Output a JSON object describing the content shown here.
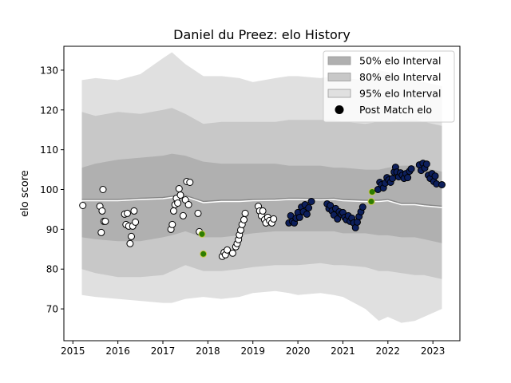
{
  "chart_data": {
    "type": "scatter",
    "title": "Daniel du Preez: elo History",
    "xlabel": "",
    "ylabel": "elo score",
    "xlim": [
      2014.8,
      2023.6
    ],
    "ylim": [
      62,
      136
    ],
    "x_ticks": [
      2015,
      2016,
      2017,
      2018,
      2019,
      2020,
      2021,
      2022,
      2023
    ],
    "x_tick_labels": [
      "2015",
      "2016",
      "2017",
      "2018",
      "2019",
      "2020",
      "2021",
      "2022",
      "2023"
    ],
    "y_ticks": [
      70,
      80,
      90,
      100,
      110,
      120,
      130
    ],
    "y_tick_labels": [
      "70",
      "80",
      "90",
      "100",
      "110",
      "120",
      "130"
    ],
    "grid": false,
    "legend": {
      "placement": "top-right",
      "entries": [
        {
          "label": "50% elo Interval",
          "color": "#b0b0b0",
          "kind": "patch"
        },
        {
          "label": "80% elo Interval",
          "color": "#c8c8c8",
          "kind": "patch"
        },
        {
          "label": "95% elo Interval",
          "color": "#e0e0e0",
          "kind": "patch"
        },
        {
          "label": "Post Match elo",
          "color": "#000000",
          "kind": "marker"
        }
      ]
    },
    "bands": {
      "x": [
        2015.2,
        2015.5,
        2016.0,
        2016.5,
        2017.0,
        2017.2,
        2017.5,
        2017.9,
        2018.3,
        2018.7,
        2019.0,
        2019.5,
        2019.8,
        2020.0,
        2020.5,
        2020.8,
        2021.0,
        2021.5,
        2021.8,
        2022.0,
        2022.3,
        2022.6,
        2022.8,
        2023.0,
        2023.2
      ],
      "median": [
        97.5,
        97.5,
        97.5,
        97.8,
        98.0,
        98.3,
        98.5,
        97.0,
        97.3,
        97.3,
        97.5,
        97.6,
        97.8,
        97.8,
        97.7,
        97.8,
        97.5,
        97.3,
        97.3,
        97.5,
        96.5,
        96.5,
        96.2,
        96.0,
        95.8
      ],
      "p50": [
        [
          88,
          105.5
        ],
        [
          87.5,
          106.5
        ],
        [
          87,
          107.5
        ],
        [
          87,
          108
        ],
        [
          88,
          108.5
        ],
        [
          88.5,
          109
        ],
        [
          89.5,
          108.5
        ],
        [
          88,
          107
        ],
        [
          88,
          106.5
        ],
        [
          88.5,
          106.5
        ],
        [
          89,
          106.5
        ],
        [
          89.5,
          106.5
        ],
        [
          89.5,
          106
        ],
        [
          89.5,
          106
        ],
        [
          89.5,
          106
        ],
        [
          89.5,
          105.5
        ],
        [
          89,
          105.5
        ],
        [
          89,
          105
        ],
        [
          88.5,
          105
        ],
        [
          88.5,
          105.5
        ],
        [
          88,
          106
        ],
        [
          88,
          106
        ],
        [
          87.5,
          105.5
        ],
        [
          87,
          105
        ],
        [
          86.5,
          104.5
        ]
      ],
      "p80": [
        [
          80,
          119.5
        ],
        [
          79,
          118.5
        ],
        [
          78,
          119.5
        ],
        [
          78,
          119
        ],
        [
          78.5,
          120
        ],
        [
          79.5,
          120.5
        ],
        [
          81,
          119
        ],
        [
          79.5,
          116.5
        ],
        [
          79.5,
          117
        ],
        [
          80,
          117
        ],
        [
          80.5,
          117
        ],
        [
          81,
          117
        ],
        [
          81,
          117.5
        ],
        [
          81,
          117.5
        ],
        [
          81.5,
          117.5
        ],
        [
          81,
          117.5
        ],
        [
          81,
          117
        ],
        [
          80.5,
          116.5
        ],
        [
          79.5,
          117
        ],
        [
          79.5,
          117
        ],
        [
          79,
          117.5
        ],
        [
          78.5,
          117.5
        ],
        [
          78.5,
          117
        ],
        [
          78,
          116.5
        ],
        [
          77.5,
          116
        ]
      ],
      "p95": [
        [
          73.5,
          127.5
        ],
        [
          73,
          128
        ],
        [
          72.5,
          127.5
        ],
        [
          72,
          129
        ],
        [
          71.5,
          133
        ],
        [
          71.5,
          134.5
        ],
        [
          72.5,
          131.5
        ],
        [
          73,
          128.5
        ],
        [
          72.5,
          128.5
        ],
        [
          73,
          128
        ],
        [
          74,
          127
        ],
        [
          74.5,
          128
        ],
        [
          74,
          128.5
        ],
        [
          73.5,
          128.5
        ],
        [
          74,
          128
        ],
        [
          73.5,
          128.5
        ],
        [
          73,
          128
        ],
        [
          70,
          127.5
        ],
        [
          67,
          130
        ],
        [
          68,
          129.5
        ],
        [
          66.5,
          127.5
        ],
        [
          67,
          127.5
        ],
        [
          68,
          127
        ],
        [
          69,
          126.5
        ],
        [
          70,
          126
        ]
      ]
    },
    "series": [
      {
        "name": "Post Match elo",
        "points": [
          {
            "x": 2015.22,
            "y": 96.0,
            "c": "#ffffff"
          },
          {
            "x": 2015.6,
            "y": 95.8,
            "c": "#ffffff"
          },
          {
            "x": 2015.63,
            "y": 89.2,
            "c": "#ffffff"
          },
          {
            "x": 2015.65,
            "y": 94.6,
            "c": "#ffffff"
          },
          {
            "x": 2015.67,
            "y": 100.0,
            "c": "#ffffff"
          },
          {
            "x": 2015.69,
            "y": 92.0,
            "c": "#ffffff"
          },
          {
            "x": 2015.72,
            "y": 92.0,
            "c": "#ffffff"
          },
          {
            "x": 2016.15,
            "y": 93.8,
            "c": "#ffffff"
          },
          {
            "x": 2016.18,
            "y": 91.2,
            "c": "#ffffff"
          },
          {
            "x": 2016.21,
            "y": 94.0,
            "c": "#ffffff"
          },
          {
            "x": 2016.24,
            "y": 90.8,
            "c": "#ffffff"
          },
          {
            "x": 2016.27,
            "y": 86.4,
            "c": "#ffffff"
          },
          {
            "x": 2016.3,
            "y": 88.2,
            "c": "#ffffff"
          },
          {
            "x": 2016.33,
            "y": 90.8,
            "c": "#ffffff"
          },
          {
            "x": 2016.36,
            "y": 94.6,
            "c": "#ffffff"
          },
          {
            "x": 2016.39,
            "y": 91.8,
            "c": "#ffffff"
          },
          {
            "x": 2017.18,
            "y": 90.0,
            "c": "#ffffff"
          },
          {
            "x": 2017.21,
            "y": 91.2,
            "c": "#ffffff"
          },
          {
            "x": 2017.24,
            "y": 94.6,
            "c": "#ffffff"
          },
          {
            "x": 2017.27,
            "y": 96.2,
            "c": "#ffffff"
          },
          {
            "x": 2017.3,
            "y": 97.8,
            "c": "#ffffff"
          },
          {
            "x": 2017.33,
            "y": 96.6,
            "c": "#ffffff"
          },
          {
            "x": 2017.36,
            "y": 100.2,
            "c": "#ffffff"
          },
          {
            "x": 2017.39,
            "y": 98.6,
            "c": "#ffffff"
          },
          {
            "x": 2017.45,
            "y": 93.4,
            "c": "#ffffff"
          },
          {
            "x": 2017.5,
            "y": 97.4,
            "c": "#ffffff"
          },
          {
            "x": 2017.53,
            "y": 102.0,
            "c": "#ffffff"
          },
          {
            "x": 2017.57,
            "y": 96.2,
            "c": "#ffffff"
          },
          {
            "x": 2017.6,
            "y": 101.8,
            "c": "#ffffff"
          },
          {
            "x": 2017.78,
            "y": 94.0,
            "c": "#ffffff"
          },
          {
            "x": 2017.81,
            "y": 89.4,
            "c": "#ffffff"
          },
          {
            "x": 2017.87,
            "y": 88.8,
            "c": "#2e7d00"
          },
          {
            "x": 2017.9,
            "y": 83.8,
            "c": "#2e7d00"
          },
          {
            "x": 2018.32,
            "y": 83.2,
            "c": "#ffffff"
          },
          {
            "x": 2018.36,
            "y": 84.2,
            "c": "#ffffff"
          },
          {
            "x": 2018.39,
            "y": 83.6,
            "c": "#ffffff"
          },
          {
            "x": 2018.43,
            "y": 84.8,
            "c": "#ffffff"
          },
          {
            "x": 2018.55,
            "y": 84.0,
            "c": "#ffffff"
          },
          {
            "x": 2018.62,
            "y": 85.6,
            "c": "#ffffff"
          },
          {
            "x": 2018.65,
            "y": 86.4,
            "c": "#ffffff"
          },
          {
            "x": 2018.68,
            "y": 87.4,
            "c": "#ffffff"
          },
          {
            "x": 2018.7,
            "y": 88.6,
            "c": "#ffffff"
          },
          {
            "x": 2018.73,
            "y": 89.8,
            "c": "#ffffff"
          },
          {
            "x": 2018.76,
            "y": 91.2,
            "c": "#ffffff"
          },
          {
            "x": 2018.8,
            "y": 92.4,
            "c": "#ffffff"
          },
          {
            "x": 2018.83,
            "y": 94.0,
            "c": "#ffffff"
          },
          {
            "x": 2019.12,
            "y": 95.8,
            "c": "#ffffff"
          },
          {
            "x": 2019.15,
            "y": 94.6,
            "c": "#ffffff"
          },
          {
            "x": 2019.19,
            "y": 93.4,
            "c": "#ffffff"
          },
          {
            "x": 2019.22,
            "y": 94.6,
            "c": "#ffffff"
          },
          {
            "x": 2019.26,
            "y": 92.4,
            "c": "#ffffff"
          },
          {
            "x": 2019.29,
            "y": 91.6,
            "c": "#ffffff"
          },
          {
            "x": 2019.33,
            "y": 93.0,
            "c": "#ffffff"
          },
          {
            "x": 2019.37,
            "y": 92.2,
            "c": "#ffffff"
          },
          {
            "x": 2019.42,
            "y": 91.6,
            "c": "#ffffff"
          },
          {
            "x": 2019.46,
            "y": 92.6,
            "c": "#ffffff"
          },
          {
            "x": 2019.8,
            "y": 91.6,
            "c": "#0d1f5c"
          },
          {
            "x": 2019.84,
            "y": 93.4,
            "c": "#0d1f5c"
          },
          {
            "x": 2019.88,
            "y": 92.0,
            "c": "#0d1f5c"
          },
          {
            "x": 2019.92,
            "y": 91.6,
            "c": "#0d1f5c"
          },
          {
            "x": 2019.96,
            "y": 92.8,
            "c": "#0d1f5c"
          },
          {
            "x": 2020.0,
            "y": 94.2,
            "c": "#0d1f5c"
          },
          {
            "x": 2020.04,
            "y": 93.0,
            "c": "#0d1f5c"
          },
          {
            "x": 2020.08,
            "y": 95.6,
            "c": "#0d1f5c"
          },
          {
            "x": 2020.12,
            "y": 94.4,
            "c": "#0d1f5c"
          },
          {
            "x": 2020.16,
            "y": 96.2,
            "c": "#0d1f5c"
          },
          {
            "x": 2020.2,
            "y": 93.8,
            "c": "#0d1f5c"
          },
          {
            "x": 2020.24,
            "y": 95.4,
            "c": "#0d1f5c"
          },
          {
            "x": 2020.3,
            "y": 97.0,
            "c": "#0d1f5c"
          },
          {
            "x": 2020.65,
            "y": 96.4,
            "c": "#0d1f5c"
          },
          {
            "x": 2020.69,
            "y": 95.2,
            "c": "#0d1f5c"
          },
          {
            "x": 2020.72,
            "y": 96.0,
            "c": "#0d1f5c"
          },
          {
            "x": 2020.76,
            "y": 94.6,
            "c": "#0d1f5c"
          },
          {
            "x": 2020.8,
            "y": 93.6,
            "c": "#0d1f5c"
          },
          {
            "x": 2020.84,
            "y": 95.2,
            "c": "#0d1f5c"
          },
          {
            "x": 2020.88,
            "y": 92.6,
            "c": "#0d1f5c"
          },
          {
            "x": 2020.92,
            "y": 94.4,
            "c": "#0d1f5c"
          },
          {
            "x": 2020.96,
            "y": 93.8,
            "c": "#0d1f5c"
          },
          {
            "x": 2021.0,
            "y": 94.2,
            "c": "#0d1f5c"
          },
          {
            "x": 2021.04,
            "y": 93.0,
            "c": "#0d1f5c"
          },
          {
            "x": 2021.08,
            "y": 92.4,
            "c": "#0d1f5c"
          },
          {
            "x": 2021.12,
            "y": 93.4,
            "c": "#0d1f5c"
          },
          {
            "x": 2021.16,
            "y": 92.0,
            "c": "#0d1f5c"
          },
          {
            "x": 2021.2,
            "y": 92.8,
            "c": "#0d1f5c"
          },
          {
            "x": 2021.24,
            "y": 91.6,
            "c": "#0d1f5c"
          },
          {
            "x": 2021.28,
            "y": 90.4,
            "c": "#0d1f5c"
          },
          {
            "x": 2021.32,
            "y": 91.8,
            "c": "#0d1f5c"
          },
          {
            "x": 2021.36,
            "y": 93.2,
            "c": "#0d1f5c"
          },
          {
            "x": 2021.4,
            "y": 94.4,
            "c": "#0d1f5c"
          },
          {
            "x": 2021.44,
            "y": 95.6,
            "c": "#0d1f5c"
          },
          {
            "x": 2021.63,
            "y": 97.0,
            "c": "#2e7d00"
          },
          {
            "x": 2021.65,
            "y": 99.4,
            "c": "#2e7d00"
          },
          {
            "x": 2021.78,
            "y": 100.0,
            "c": "#0d1f5c"
          },
          {
            "x": 2021.82,
            "y": 101.8,
            "c": "#0d1f5c"
          },
          {
            "x": 2021.86,
            "y": 101.2,
            "c": "#0d1f5c"
          },
          {
            "x": 2021.9,
            "y": 100.4,
            "c": "#0d1f5c"
          },
          {
            "x": 2021.94,
            "y": 101.6,
            "c": "#0d1f5c"
          },
          {
            "x": 2021.98,
            "y": 103.0,
            "c": "#0d1f5c"
          },
          {
            "x": 2022.02,
            "y": 102.4,
            "c": "#0d1f5c"
          },
          {
            "x": 2022.06,
            "y": 101.8,
            "c": "#0d1f5c"
          },
          {
            "x": 2022.1,
            "y": 102.8,
            "c": "#0d1f5c"
          },
          {
            "x": 2022.14,
            "y": 104.4,
            "c": "#0d1f5c"
          },
          {
            "x": 2022.17,
            "y": 105.6,
            "c": "#0d1f5c"
          },
          {
            "x": 2022.2,
            "y": 104.4,
            "c": "#0d1f5c"
          },
          {
            "x": 2022.24,
            "y": 103.2,
            "c": "#0d1f5c"
          },
          {
            "x": 2022.28,
            "y": 104.2,
            "c": "#0d1f5c"
          },
          {
            "x": 2022.32,
            "y": 103.6,
            "c": "#0d1f5c"
          },
          {
            "x": 2022.36,
            "y": 102.8,
            "c": "#0d1f5c"
          },
          {
            "x": 2022.4,
            "y": 104.0,
            "c": "#0d1f5c"
          },
          {
            "x": 2022.44,
            "y": 103.0,
            "c": "#0d1f5c"
          },
          {
            "x": 2022.48,
            "y": 104.6,
            "c": "#0d1f5c"
          },
          {
            "x": 2022.52,
            "y": 105.2,
            "c": "#0d1f5c"
          },
          {
            "x": 2022.7,
            "y": 106.2,
            "c": "#0d1f5c"
          },
          {
            "x": 2022.74,
            "y": 104.8,
            "c": "#0d1f5c"
          },
          {
            "x": 2022.78,
            "y": 106.6,
            "c": "#0d1f5c"
          },
          {
            "x": 2022.82,
            "y": 105.4,
            "c": "#0d1f5c"
          },
          {
            "x": 2022.86,
            "y": 106.4,
            "c": "#0d1f5c"
          },
          {
            "x": 2022.9,
            "y": 103.6,
            "c": "#0d1f5c"
          },
          {
            "x": 2022.94,
            "y": 102.8,
            "c": "#0d1f5c"
          },
          {
            "x": 2022.98,
            "y": 104.0,
            "c": "#0d1f5c"
          },
          {
            "x": 2023.02,
            "y": 102.0,
            "c": "#0d1f5c"
          },
          {
            "x": 2023.05,
            "y": 103.4,
            "c": "#0d1f5c"
          },
          {
            "x": 2023.08,
            "y": 101.4,
            "c": "#0d1f5c"
          },
          {
            "x": 2023.2,
            "y": 101.2,
            "c": "#0d1f5c"
          }
        ]
      }
    ]
  }
}
